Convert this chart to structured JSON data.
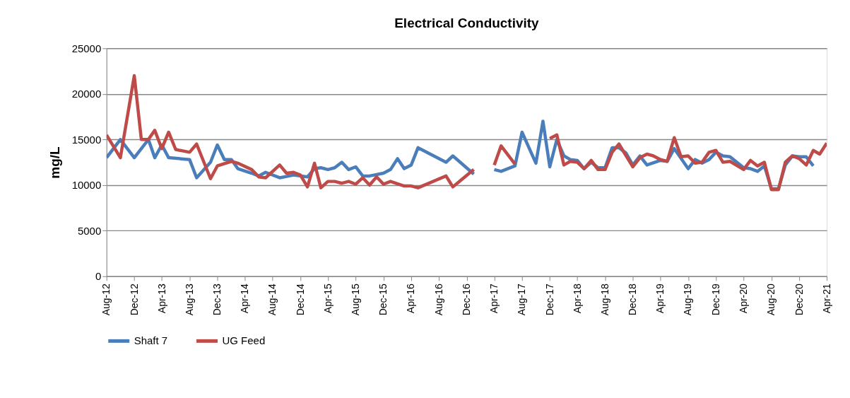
{
  "chart_data": {
    "type": "line",
    "title": "Electrical Conductivity",
    "ylabel": "mg/L",
    "ylim": [
      0,
      25000
    ],
    "yticks": [
      0,
      5000,
      10000,
      15000,
      20000,
      25000
    ],
    "xlim": [
      "2012-08",
      "2021-04"
    ],
    "xticks": [
      {
        "value": "2012-08",
        "label": "Aug-12"
      },
      {
        "value": "2012-12",
        "label": "Dec-12"
      },
      {
        "value": "2013-04",
        "label": "Apr-13"
      },
      {
        "value": "2013-08",
        "label": "Aug-13"
      },
      {
        "value": "2013-12",
        "label": "Dec-13"
      },
      {
        "value": "2014-04",
        "label": "Apr-14"
      },
      {
        "value": "2014-08",
        "label": "Aug-14"
      },
      {
        "value": "2014-12",
        "label": "Dec-14"
      },
      {
        "value": "2015-04",
        "label": "Apr-15"
      },
      {
        "value": "2015-08",
        "label": "Aug-15"
      },
      {
        "value": "2015-12",
        "label": "Dec-15"
      },
      {
        "value": "2016-04",
        "label": "Apr-16"
      },
      {
        "value": "2016-08",
        "label": "Aug-16"
      },
      {
        "value": "2016-12",
        "label": "Dec-16"
      },
      {
        "value": "2017-04",
        "label": "Apr-17"
      },
      {
        "value": "2017-08",
        "label": "Aug-17"
      },
      {
        "value": "2017-12",
        "label": "Dec-17"
      },
      {
        "value": "2018-04",
        "label": "Apr-18"
      },
      {
        "value": "2018-08",
        "label": "Aug-18"
      },
      {
        "value": "2018-12",
        "label": "Dec-18"
      },
      {
        "value": "2019-04",
        "label": "Apr-19"
      },
      {
        "value": "2019-08",
        "label": "Aug-19"
      },
      {
        "value": "2019-12",
        "label": "Dec-19"
      },
      {
        "value": "2020-04",
        "label": "Apr-20"
      },
      {
        "value": "2020-08",
        "label": "Aug-20"
      },
      {
        "value": "2020-12",
        "label": "Dec-20"
      },
      {
        "value": "2021-04",
        "label": "Apr-21"
      }
    ],
    "grid": "y",
    "legend": "bottom",
    "marker": "none",
    "line_style": "solid",
    "series": [
      {
        "name": "Shaft 7",
        "color": "#4a7ebb",
        "x": [
          "2012-08",
          "2012-10",
          "2012-12",
          "2013-02",
          "2013-03",
          "2013-04",
          "2013-05",
          "2013-08",
          "2013-09",
          "2013-11",
          "2013-12",
          "2014-01",
          "2014-02",
          "2014-03",
          "2014-05",
          "2014-06",
          "2014-07",
          "2014-09",
          "2014-11",
          "2015-01",
          "2015-02",
          "2015-03",
          "2015-04",
          "2015-05",
          "2015-06",
          "2015-07",
          "2015-08",
          "2015-09",
          "2015-10",
          "2015-12",
          "2016-01",
          "2016-02",
          "2016-03",
          "2016-04",
          "2016-05",
          "2016-09",
          "2016-10",
          "2017-01",
          "2017-02",
          "2017-04",
          "2017-05",
          "2017-07",
          "2017-08",
          "2017-10",
          "2017-11",
          "2017-12",
          "2018-01",
          "2018-02",
          "2018-03",
          "2018-04",
          "2018-05",
          "2018-06",
          "2018-07",
          "2018-08",
          "2018-09",
          "2018-10",
          "2018-11",
          "2018-12",
          "2019-01",
          "2019-02",
          "2019-04",
          "2019-05",
          "2019-06",
          "2019-08",
          "2019-09",
          "2019-10",
          "2019-11",
          "2019-12",
          "2020-01",
          "2020-02",
          "2020-04",
          "2020-05",
          "2020-06",
          "2020-07",
          "2020-08",
          "2020-09",
          "2020-10",
          "2020-11",
          "2020-12",
          "2021-01",
          "2021-02"
        ],
        "values": [
          13000,
          15000,
          13000,
          15000,
          13000,
          14400,
          13000,
          12800,
          10800,
          12500,
          14400,
          12800,
          12800,
          11800,
          11300,
          11000,
          11400,
          10800,
          11100,
          10900,
          11800,
          11900,
          11700,
          11900,
          12500,
          11700,
          12000,
          11000,
          11000,
          11300,
          11700,
          12900,
          11800,
          12200,
          14100,
          12500,
          13200,
          11200,
          null,
          11700,
          11500,
          12100,
          15800,
          12400,
          17000,
          12000,
          15000,
          13200,
          12800,
          12700,
          11800,
          12500,
          11900,
          11900,
          14100,
          14100,
          13500,
          12200,
          13200,
          12200,
          12700,
          12600,
          14000,
          11800,
          12800,
          12400,
          12800,
          13600,
          13200,
          13100,
          11900,
          11800,
          11500,
          12100,
          9600,
          9600,
          12200,
          13200,
          13100,
          13100,
          12100
        ]
      },
      {
        "name": "UG Feed",
        "color": "#be4b48",
        "x": [
          "2012-08",
          "2012-10",
          "2012-12",
          "2013-01",
          "2013-02",
          "2013-03",
          "2013-04",
          "2013-05",
          "2013-06",
          "2013-08",
          "2013-09",
          "2013-11",
          "2013-12",
          "2014-02",
          "2014-03",
          "2014-05",
          "2014-06",
          "2014-07",
          "2014-09",
          "2014-10",
          "2014-11",
          "2014-12",
          "2015-01",
          "2015-02",
          "2015-03",
          "2015-04",
          "2015-05",
          "2015-06",
          "2015-07",
          "2015-08",
          "2015-09",
          "2015-10",
          "2015-11",
          "2015-12",
          "2016-01",
          "2016-03",
          "2016-04",
          "2016-05",
          "2016-09",
          "2016-10",
          "2017-01",
          "2017-02",
          "2017-04",
          "2017-05",
          "2017-07",
          "2017-09",
          "2017-12",
          "2018-01",
          "2018-02",
          "2018-03",
          "2018-04",
          "2018-05",
          "2018-06",
          "2018-07",
          "2018-08",
          "2018-09",
          "2018-10",
          "2018-12",
          "2019-01",
          "2019-02",
          "2019-03",
          "2019-04",
          "2019-05",
          "2019-06",
          "2019-07",
          "2019-08",
          "2019-09",
          "2019-10",
          "2019-11",
          "2019-12",
          "2020-01",
          "2020-02",
          "2020-04",
          "2020-05",
          "2020-06",
          "2020-07",
          "2020-08",
          "2020-09",
          "2020-10",
          "2020-11",
          "2020-12",
          "2021-01",
          "2021-02",
          "2021-03",
          "2021-04"
        ],
        "values": [
          15500,
          13000,
          22000,
          15000,
          15000,
          16000,
          14000,
          15800,
          13900,
          13600,
          14500,
          10700,
          12100,
          12600,
          12400,
          11700,
          10900,
          10800,
          12200,
          11300,
          11400,
          11100,
          9800,
          12400,
          9700,
          10400,
          10400,
          10200,
          10400,
          10100,
          10800,
          10000,
          10900,
          10100,
          10400,
          9900,
          9900,
          9700,
          11000,
          9800,
          11700,
          null,
          12200,
          14300,
          12300,
          null,
          15100,
          15500,
          12200,
          12600,
          12500,
          11800,
          12700,
          11700,
          11700,
          13600,
          14500,
          12000,
          13000,
          13400,
          13200,
          12800,
          12600,
          15200,
          13100,
          13200,
          12400,
          12500,
          13600,
          13800,
          12500,
          12600,
          11700,
          12700,
          12100,
          12500,
          9500,
          9500,
          12500,
          13200,
          12900,
          12200,
          13800,
          13400,
          14600
        ]
      }
    ]
  }
}
